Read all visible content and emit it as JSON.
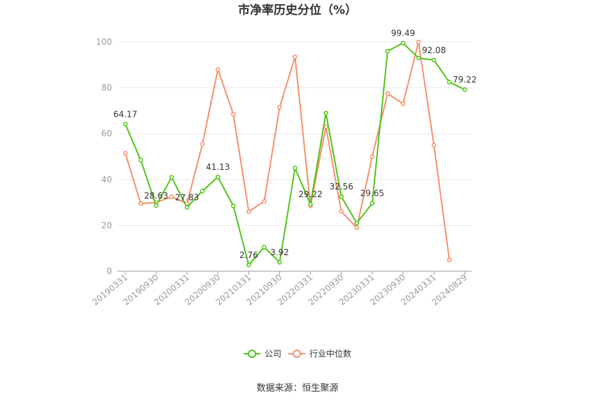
{
  "chart_data": {
    "type": "line",
    "title": "市净率历史分位（%）",
    "xlabel": "",
    "ylabel": "",
    "ylim": [
      0,
      100
    ],
    "yticks": [
      0,
      20,
      40,
      60,
      80,
      100
    ],
    "x": [
      "20190331",
      "20190630",
      "20190930",
      "20191231",
      "20200331",
      "20200630",
      "20200930",
      "20201231",
      "20210331",
      "20210630",
      "20210930",
      "20211231",
      "20220331",
      "20220630",
      "20220930",
      "20221231",
      "20230331",
      "20230630",
      "20230930",
      "20231231",
      "20240331",
      "20240630",
      "20240829"
    ],
    "x_tick_labels": [
      "20190331",
      "20190930",
      "20200331",
      "20200930",
      "20210331",
      "20210930",
      "20220331",
      "20220930",
      "20230331",
      "20230930",
      "20240331",
      "20240829"
    ],
    "series": [
      {
        "name": "公司",
        "color": "#52c41a",
        "values": [
          64.17,
          48.5,
          28.63,
          41.0,
          27.83,
          35.0,
          41.13,
          28.5,
          2.76,
          10.5,
          3.92,
          45.0,
          29.22,
          69.0,
          32.56,
          21.0,
          29.65,
          96.0,
          99.49,
          93.0,
          92.08,
          82.5,
          79.22
        ],
        "labels": {
          "0": "64.17",
          "2": "28.63",
          "4": "27.83",
          "6": "41.13",
          "8": "2.76",
          "10": "3.92",
          "12": "29.22",
          "14": "32.56",
          "16": "29.65",
          "18": "99.49",
          "20": "92.08",
          "22": "79.22"
        }
      },
      {
        "name": "行业中位数",
        "color": "#f4916b",
        "values": [
          51.5,
          29.5,
          30.0,
          32.5,
          29.5,
          55.5,
          88.0,
          68.5,
          26.0,
          30.5,
          71.5,
          93.5,
          28.5,
          63.0,
          26.0,
          19.0,
          50.0,
          77.5,
          73.0,
          100.0,
          55.0,
          5.0,
          null
        ]
      }
    ],
    "grid": true,
    "legend_position": "bottom"
  },
  "source_text": "数据来源：恒生聚源"
}
